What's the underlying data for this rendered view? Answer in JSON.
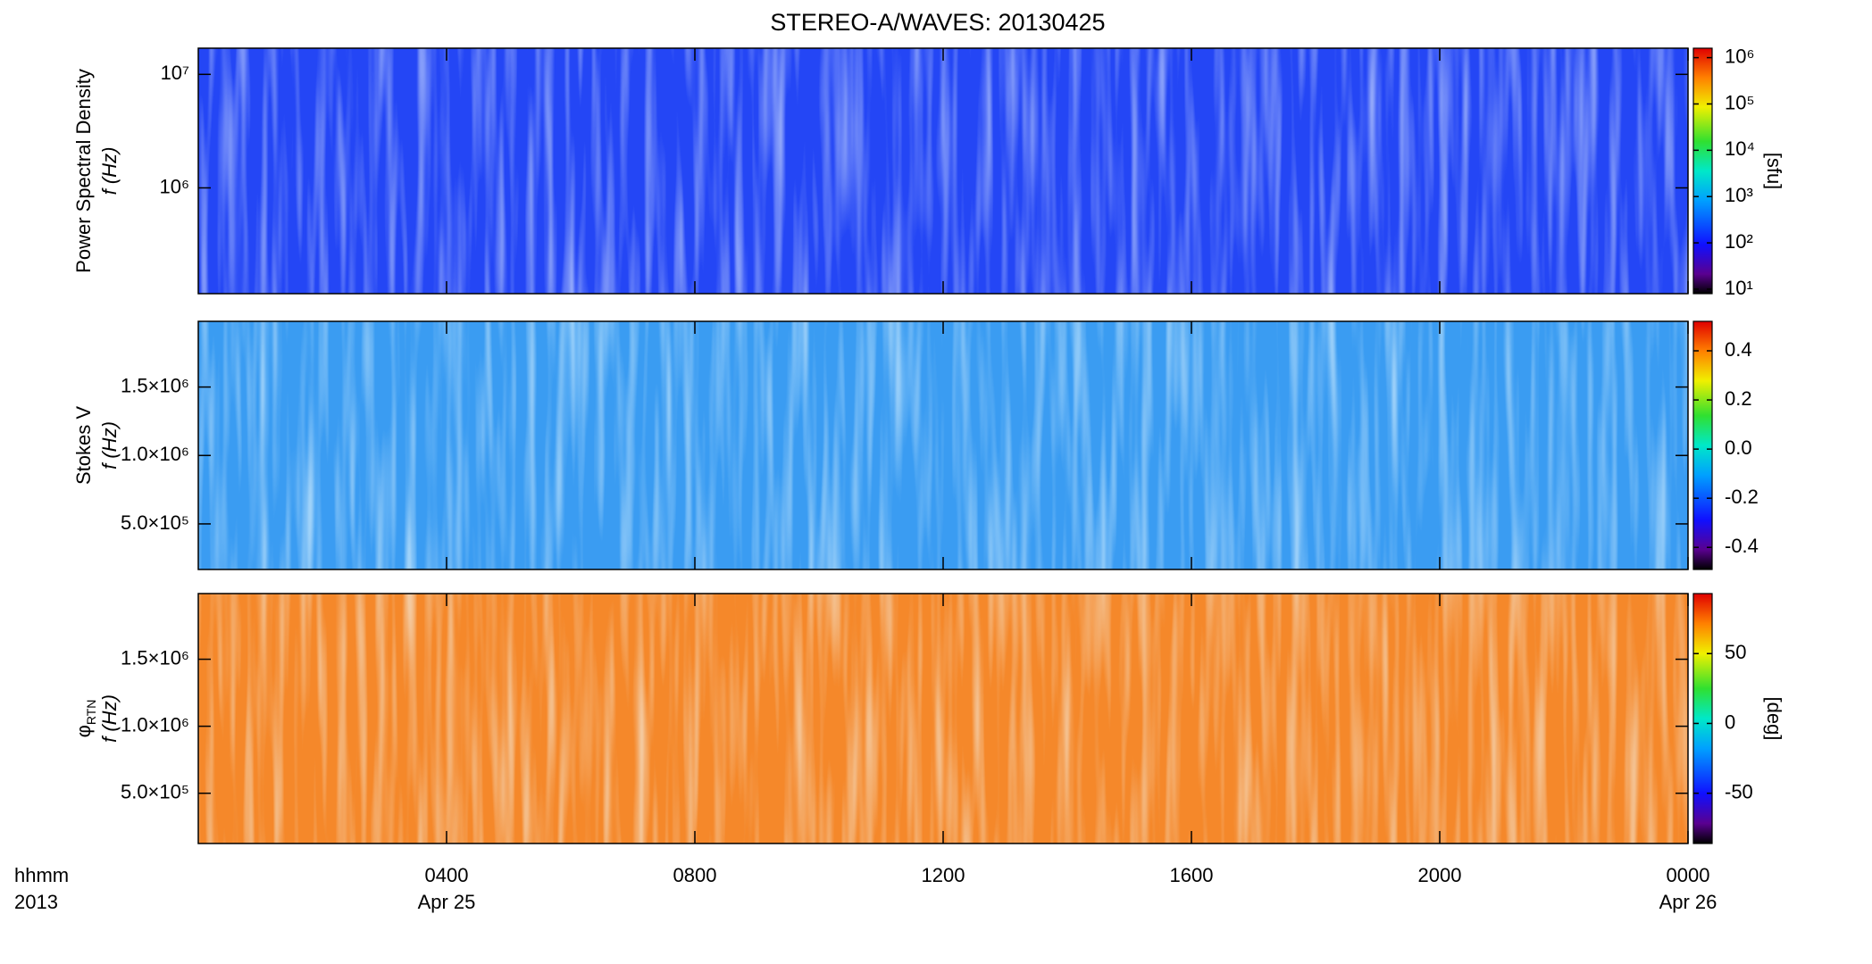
{
  "chart_data": [
    {
      "type": "spectrogram",
      "title": "STEREO-A/WAVES: 20130425",
      "ylabel": "Power Spectral Density",
      "ylabel2": "f (Hz)",
      "ylog": true,
      "ylim": [
        117000,
        17000000
      ],
      "yticks": [
        {
          "value": 1000000,
          "label": "10⁶"
        },
        {
          "value": 10000000,
          "label": "10⁷"
        }
      ],
      "clog": true,
      "clim": [
        8,
        1600000
      ],
      "cticks": [
        {
          "value": 10,
          "label": "10¹"
        },
        {
          "value": 100,
          "label": "10²"
        },
        {
          "value": 1000,
          "label": "10³"
        },
        {
          "value": 10000,
          "label": "10⁴"
        },
        {
          "value": 100000,
          "label": "10⁵"
        },
        {
          "value": 1000000,
          "label": "10⁶"
        }
      ],
      "clabel": "[sfu]",
      "color": "#2446f5"
    },
    {
      "type": "spectrogram",
      "ylabel": "Stokes V",
      "ylabel2": "f (Hz)",
      "ylog": false,
      "ylim": [
        167000,
        1980000
      ],
      "yticks": [
        {
          "value": 500000,
          "label": "5.0×10⁵"
        },
        {
          "value": 1000000,
          "label": "1.0×10⁶"
        },
        {
          "value": 1500000,
          "label": "1.5×10⁶"
        }
      ],
      "clog": false,
      "clim": [
        -0.49,
        0.52
      ],
      "cticks": [
        -0.4,
        -0.2,
        {
          "value": 0,
          "label": "0.0"
        },
        0.2,
        0.4
      ],
      "color": "#3a9cf2"
    },
    {
      "type": "spectrogram",
      "ylabel": "φ",
      "ylabel_sub": "RTN",
      "ylabel2": "f (Hz)",
      "ylog": false,
      "ylim": [
        125000,
        1990000
      ],
      "yticks": [
        {
          "value": 500000,
          "label": "5.0×10⁵"
        },
        {
          "value": 1000000,
          "label": "1.0×10⁶"
        },
        {
          "value": 1500000,
          "label": "1.5×10⁶"
        }
      ],
      "clog": false,
      "clim": [
        -86,
        93
      ],
      "cticks": [
        -50,
        0,
        50
      ],
      "clabel": "[deg]",
      "color": "#f5882a",
      "xlabel": "hhmm",
      "xlabel2": "2013",
      "xlim": [
        0,
        24
      ],
      "xticks": [
        {
          "value": 4,
          "label": "0400"
        },
        {
          "value": 8,
          "label": "0800"
        },
        {
          "value": 12,
          "label": "1200"
        },
        {
          "value": 16,
          "label": "1600"
        },
        {
          "value": 20,
          "label": "2000"
        },
        {
          "value": 24,
          "label": "0000"
        }
      ],
      "xtick_dates": [
        "Apr 25",
        null,
        null,
        null,
        null,
        "Apr 26"
      ]
    }
  ]
}
